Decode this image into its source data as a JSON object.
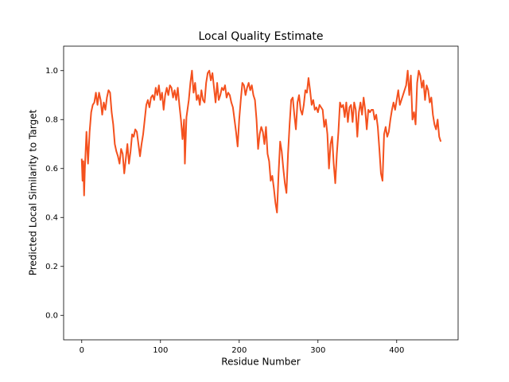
{
  "chart_data": {
    "type": "line",
    "title": "Local Quality Estimate",
    "x_label": "Residue Number",
    "y_label": "Predicted Local Similarity to Target",
    "color": "#f4511e",
    "xlim": [
      -23,
      478
    ],
    "ylim": [
      -0.1,
      1.1
    ],
    "xticks": [
      0,
      100,
      200,
      300,
      400
    ],
    "yticks": [
      {
        "value": 0,
        "label": "0.0"
      },
      0.2,
      0.4,
      0.6,
      0.8,
      {
        "value": 1,
        "label": "1.0"
      }
    ],
    "x": [
      0,
      1,
      2,
      3,
      4,
      6,
      8,
      10,
      12,
      14,
      16,
      18,
      20,
      22,
      24,
      26,
      28,
      30,
      32,
      34,
      36,
      38,
      40,
      42,
      44,
      46,
      48,
      50,
      52,
      54,
      56,
      58,
      60,
      62,
      64,
      66,
      68,
      70,
      72,
      74,
      76,
      78,
      80,
      82,
      84,
      86,
      88,
      90,
      92,
      94,
      96,
      98,
      100,
      102,
      104,
      106,
      108,
      110,
      112,
      114,
      116,
      118,
      120,
      122,
      124,
      126,
      128,
      130,
      131,
      133,
      136,
      138,
      140,
      142,
      144,
      146,
      148,
      150,
      152,
      154,
      156,
      158,
      160,
      162,
      164,
      166,
      168,
      170,
      172,
      174,
      176,
      178,
      180,
      182,
      184,
      186,
      188,
      190,
      192,
      194,
      196,
      198,
      200,
      202,
      204,
      206,
      208,
      210,
      212,
      214,
      216,
      218,
      220,
      222,
      224,
      226,
      228,
      230,
      232,
      234,
      236,
      238,
      240,
      242,
      244,
      246,
      248,
      250,
      252,
      254,
      256,
      258,
      260,
      262,
      264,
      266,
      268,
      270,
      272,
      274,
      276,
      278,
      280,
      282,
      284,
      286,
      288,
      290,
      292,
      294,
      296,
      298,
      300,
      302,
      304,
      306,
      308,
      310,
      312,
      314,
      316,
      318,
      320,
      322,
      324,
      326,
      328,
      330,
      332,
      334,
      336,
      338,
      340,
      342,
      344,
      346,
      348,
      350,
      352,
      354,
      356,
      358,
      360,
      362,
      364,
      366,
      368,
      370,
      372,
      374,
      376,
      378,
      380,
      382,
      384,
      386,
      388,
      390,
      392,
      394,
      396,
      398,
      400,
      402,
      404,
      406,
      408,
      410,
      412,
      414,
      416,
      418,
      420,
      422,
      424,
      426,
      428,
      430,
      432,
      434,
      436,
      438,
      440,
      442,
      444,
      446,
      448,
      450,
      452,
      454,
      456
    ],
    "values": [
      0.64,
      0.55,
      0.63,
      0.49,
      0.6,
      0.75,
      0.62,
      0.75,
      0.83,
      0.86,
      0.87,
      0.91,
      0.86,
      0.91,
      0.88,
      0.82,
      0.87,
      0.84,
      0.89,
      0.92,
      0.91,
      0.83,
      0.78,
      0.7,
      0.67,
      0.65,
      0.62,
      0.68,
      0.66,
      0.58,
      0.64,
      0.7,
      0.62,
      0.67,
      0.74,
      0.73,
      0.76,
      0.75,
      0.7,
      0.65,
      0.7,
      0.74,
      0.8,
      0.86,
      0.88,
      0.85,
      0.89,
      0.9,
      0.88,
      0.93,
      0.9,
      0.94,
      0.88,
      0.91,
      0.84,
      0.9,
      0.93,
      0.9,
      0.94,
      0.93,
      0.89,
      0.92,
      0.88,
      0.93,
      0.86,
      0.8,
      0.72,
      0.8,
      0.62,
      0.81,
      0.88,
      0.95,
      1.0,
      0.91,
      0.95,
      0.88,
      0.9,
      0.86,
      0.92,
      0.88,
      0.87,
      0.95,
      0.99,
      1.0,
      0.96,
      0.99,
      0.93,
      0.87,
      0.95,
      0.88,
      0.9,
      0.93,
      0.92,
      0.94,
      0.89,
      0.91,
      0.9,
      0.87,
      0.85,
      0.8,
      0.75,
      0.69,
      0.8,
      0.88,
      0.95,
      0.94,
      0.9,
      0.93,
      0.95,
      0.92,
      0.94,
      0.9,
      0.88,
      0.8,
      0.68,
      0.74,
      0.77,
      0.75,
      0.7,
      0.77,
      0.66,
      0.63,
      0.55,
      0.57,
      0.52,
      0.46,
      0.42,
      0.58,
      0.71,
      0.67,
      0.6,
      0.54,
      0.5,
      0.66,
      0.78,
      0.88,
      0.89,
      0.82,
      0.76,
      0.87,
      0.9,
      0.84,
      0.82,
      0.86,
      0.92,
      0.91,
      0.97,
      0.92,
      0.86,
      0.88,
      0.84,
      0.85,
      0.83,
      0.86,
      0.85,
      0.84,
      0.77,
      0.8,
      0.74,
      0.6,
      0.7,
      0.73,
      0.62,
      0.54,
      0.66,
      0.75,
      0.87,
      0.85,
      0.86,
      0.81,
      0.87,
      0.79,
      0.85,
      0.86,
      0.79,
      0.87,
      0.84,
      0.73,
      0.83,
      0.87,
      0.82,
      0.89,
      0.84,
      0.76,
      0.84,
      0.83,
      0.84,
      0.84,
      0.8,
      0.82,
      0.77,
      0.68,
      0.58,
      0.55,
      0.74,
      0.77,
      0.73,
      0.75,
      0.8,
      0.84,
      0.87,
      0.84,
      0.88,
      0.92,
      0.86,
      0.88,
      0.9,
      0.92,
      0.94,
      1.0,
      0.9,
      0.98,
      0.8,
      0.83,
      0.78,
      0.95,
      1.0,
      0.98,
      0.93,
      0.96,
      0.88,
      0.94,
      0.92,
      0.87,
      0.89,
      0.82,
      0.78,
      0.76,
      0.8,
      0.73,
      0.71
    ]
  }
}
